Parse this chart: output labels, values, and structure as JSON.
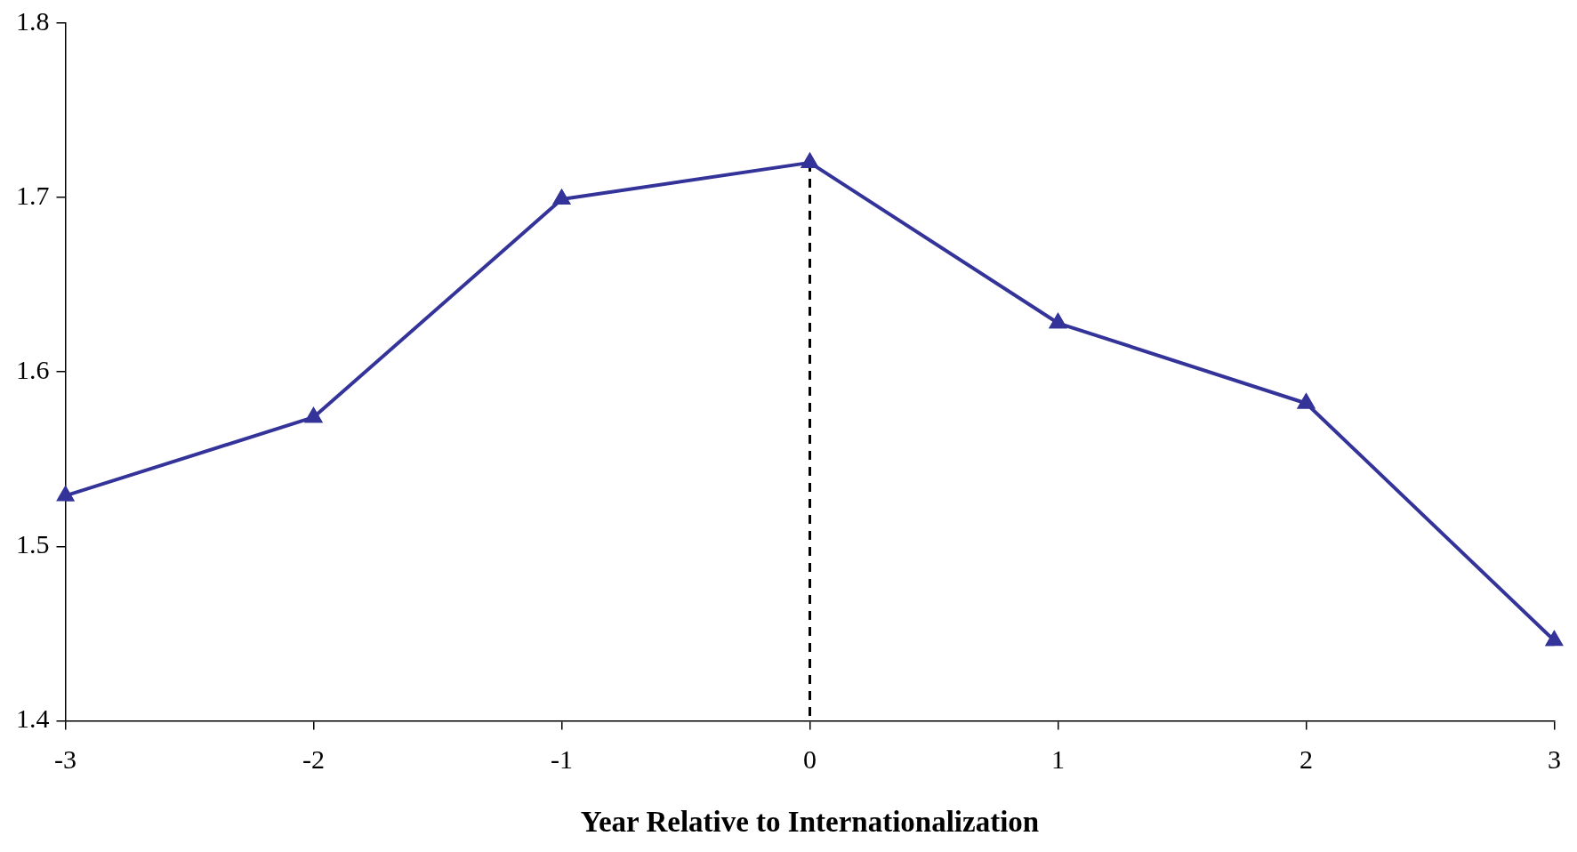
{
  "chart_data": {
    "type": "line",
    "xlabel": "Year Relative to Internationalization",
    "x": [
      -3,
      -2,
      -1,
      0,
      1,
      2,
      3
    ],
    "series": [
      {
        "color": "#333399",
        "values": [
          1.529,
          1.574,
          1.699,
          1.72,
          1.628,
          1.582,
          1.446
        ]
      }
    ],
    "xlim": [
      -3,
      3
    ],
    "xticks": [
      -3,
      -2,
      -1,
      0,
      1,
      2,
      3
    ],
    "ylim": [
      1.4,
      1.8
    ],
    "yticks": [
      1.4,
      1.5,
      1.6,
      1.7,
      1.8
    ],
    "ref_lines": [
      {
        "axis": "x",
        "value": 0,
        "color": "#000000",
        "line_style": "dashed"
      }
    ],
    "grid": false,
    "legend": false,
    "marker": "triangle",
    "line_style": "solid"
  }
}
